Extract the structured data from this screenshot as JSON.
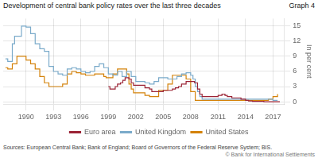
{
  "chart_data": {
    "type": "line",
    "title": "Development of central bank policy rates over the last three decades",
    "ylabel": "In per cent",
    "annotations": [
      "Graph 4",
      "Sources: European Central Bank; Bank of England; Board of Governors of the Federal Reserve System; BIS.",
      "© Bank for International Settlements"
    ],
    "xlim": [
      1987.5,
      2018.2
    ],
    "xticks": [
      1990,
      1993,
      1996,
      1999,
      2002,
      2005,
      2008,
      2011,
      2014,
      2017
    ],
    "ylim": [
      -0.5,
      16.5
    ],
    "yticks": [
      0,
      3,
      6,
      9,
      12,
      15
    ],
    "grid": true,
    "legend": "bottom",
    "line_style": "step",
    "series": [
      {
        "name": "Euro area",
        "color": "#9b2335",
        "x": [
          1999.0,
          1999.17,
          1999.5,
          1999.75,
          2000.0,
          2000.33,
          2000.58,
          2000.83,
          2001.0,
          2001.25,
          2001.5,
          2001.75,
          2002.0,
          2002.5,
          2003.0,
          2003.5,
          2003.75,
          2004.0,
          2004.5,
          2005.0,
          2005.5,
          2006.0,
          2006.33,
          2006.67,
          2007.0,
          2007.5,
          2008.0,
          2008.42,
          2008.75,
          2009.0,
          2009.25,
          2009.5,
          2010.0,
          2011.0,
          2011.42,
          2011.75,
          2012.0,
          2012.5,
          2013.0,
          2013.5,
          2014.0,
          2014.33,
          2014.75,
          2015.0,
          2016.0,
          2017.0,
          2017.75
        ],
        "values": [
          3.0,
          2.5,
          2.5,
          3.0,
          3.5,
          3.75,
          4.25,
          4.75,
          4.75,
          4.5,
          3.75,
          3.25,
          3.25,
          3.25,
          2.75,
          2.5,
          2.0,
          2.0,
          2.0,
          2.25,
          2.25,
          2.5,
          2.75,
          3.0,
          3.5,
          4.0,
          4.0,
          3.75,
          2.5,
          1.5,
          1.0,
          1.0,
          1.0,
          1.25,
          1.5,
          1.25,
          1.0,
          0.75,
          0.75,
          0.5,
          0.25,
          0.15,
          0.05,
          0.05,
          0.0,
          0.0,
          0.0
        ]
      },
      {
        "name": "United Kingdom",
        "color": "#7aaaca",
        "x": [
          1987.75,
          1988.0,
          1988.5,
          1988.75,
          1989.0,
          1989.5,
          1989.75,
          1990.0,
          1990.5,
          1991.0,
          1991.5,
          1992.0,
          1992.5,
          1993.0,
          1993.5,
          1994.0,
          1994.5,
          1995.0,
          1995.5,
          1996.0,
          1996.5,
          1997.0,
          1997.5,
          1998.0,
          1998.5,
          1999.0,
          1999.5,
          2000.0,
          2000.5,
          2001.0,
          2001.5,
          2002.0,
          2002.5,
          2003.0,
          2003.5,
          2004.0,
          2004.5,
          2005.0,
          2005.5,
          2006.0,
          2006.5,
          2007.0,
          2007.5,
          2007.75,
          2008.0,
          2008.25,
          2008.5,
          2008.75,
          2009.0,
          2009.25,
          2016.5,
          2017.0,
          2017.5
        ],
        "values": [
          8.5,
          8.0,
          11.5,
          13.0,
          13.0,
          15.0,
          15.0,
          14.8,
          13.5,
          11.5,
          10.5,
          10.0,
          7.0,
          6.0,
          5.5,
          5.25,
          6.5,
          6.75,
          6.5,
          6.0,
          5.75,
          6.0,
          7.0,
          7.5,
          6.75,
          5.5,
          5.25,
          6.0,
          5.0,
          6.0,
          5.0,
          4.0,
          4.0,
          3.75,
          3.5,
          4.0,
          4.75,
          4.75,
          4.5,
          4.5,
          5.0,
          5.5,
          5.75,
          5.75,
          5.25,
          4.5,
          3.0,
          2.0,
          1.0,
          0.5,
          0.5,
          0.25,
          0.25
        ]
      },
      {
        "name": "United States",
        "color": "#d4820a",
        "x": [
          1987.75,
          1988.0,
          1988.5,
          1989.0,
          1989.5,
          1990.0,
          1990.5,
          1991.0,
          1991.5,
          1992.0,
          1992.5,
          1993.0,
          1993.5,
          1994.0,
          1994.5,
          1995.0,
          1995.5,
          1996.0,
          1996.5,
          1997.0,
          1997.5,
          1998.0,
          1998.5,
          1998.75,
          1999.0,
          1999.5,
          2000.0,
          2000.5,
          2000.75,
          2001.0,
          2001.25,
          2001.5,
          2001.75,
          2002.0,
          2002.5,
          2003.0,
          2003.5,
          2004.0,
          2004.5,
          2005.0,
          2005.5,
          2006.0,
          2006.5,
          2007.0,
          2007.5,
          2008.0,
          2008.5,
          2008.75,
          2009.0,
          2015.75,
          2016.5,
          2017.0,
          2017.5
        ],
        "values": [
          6.75,
          6.5,
          7.5,
          9.0,
          9.0,
          8.25,
          7.5,
          6.5,
          5.0,
          3.75,
          3.0,
          3.0,
          3.0,
          3.5,
          5.5,
          6.0,
          5.75,
          5.5,
          5.25,
          5.25,
          5.5,
          5.5,
          5.0,
          4.75,
          4.75,
          5.5,
          6.5,
          6.5,
          6.5,
          5.5,
          3.5,
          2.5,
          1.75,
          1.75,
          1.75,
          1.25,
          1.0,
          1.0,
          2.25,
          2.25,
          3.5,
          5.25,
          5.25,
          5.25,
          4.5,
          2.0,
          0.25,
          0.25,
          0.25,
          0.25,
          0.5,
          1.0,
          1.5
        ]
      }
    ]
  }
}
